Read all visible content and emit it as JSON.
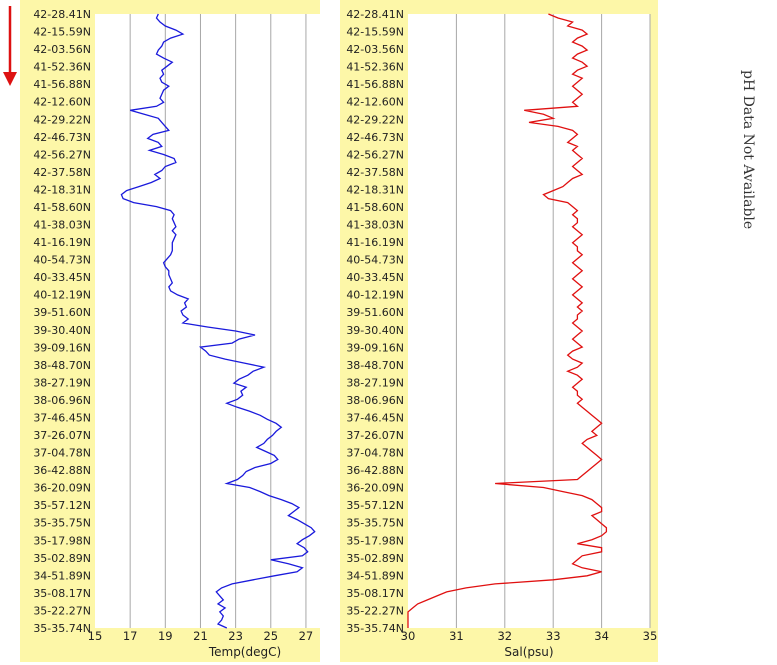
{
  "side_note": "pH Data Not Available",
  "latitudes": [
    "42-28.41N",
    "42-15.59N",
    "42-03.56N",
    "41-52.36N",
    "41-56.88N",
    "42-12.60N",
    "42-29.22N",
    "42-46.73N",
    "42-56.27N",
    "42-37.58N",
    "42-18.31N",
    "41-58.60N",
    "41-38.03N",
    "41-16.19N",
    "40-54.73N",
    "40-33.45N",
    "40-12.19N",
    "39-51.60N",
    "39-30.40N",
    "39-09.16N",
    "38-48.70N",
    "38-27.19N",
    "38-06.96N",
    "37-46.45N",
    "37-26.07N",
    "37-04.78N",
    "36-42.88N",
    "36-20.09N",
    "35-57.12N",
    "35-35.75N",
    "35-17.98N",
    "35-02.89N",
    "34-51.89N",
    "35-08.17N",
    "35-22.27N",
    "35-35.74N"
  ],
  "colors": {
    "panel_bg": "#fdf7a8",
    "plot_bg": "#ffffff",
    "temp_line": "#1a1adc",
    "sal_line": "#e01010",
    "arrow": "#dd1111"
  },
  "chart_data": [
    {
      "type": "line",
      "xlabel": "Temp(degC)",
      "xlim": [
        15,
        27.8
      ],
      "xticks": [
        15,
        17,
        19,
        21,
        23,
        25,
        27
      ],
      "orientation": "depth-profile",
      "series": [
        {
          "values": [
            18.6,
            18.5,
            18.7,
            19.0,
            19.6,
            20.0,
            19.3,
            18.9,
            18.8,
            18.6,
            18.5,
            18.9,
            19.4,
            19.1,
            18.8,
            18.9,
            18.7,
            18.8,
            19.2,
            18.9,
            18.8,
            18.7,
            18.9,
            18.5,
            17.0,
            17.8,
            18.6,
            18.8,
            19.0,
            19.2,
            18.3,
            18.0,
            18.6,
            18.8,
            18.1,
            18.9,
            19.5,
            19.6,
            19.0,
            18.8,
            18.4,
            18.7,
            18.2,
            17.5,
            16.8,
            16.5,
            16.6,
            17.2,
            18.5,
            19.3,
            19.5,
            19.4,
            19.5,
            19.6,
            19.4,
            19.6,
            19.5,
            19.4,
            19.4,
            19.4,
            19.3,
            19.1,
            18.9,
            19.0,
            19.2,
            19.2,
            19.3,
            19.4,
            19.2,
            19.3,
            19.7,
            20.3,
            20.1,
            20.2,
            19.9,
            20.0,
            20.3,
            20.0,
            21.4,
            23.0,
            24.1,
            23.2,
            22.8,
            21.0,
            21.3,
            21.5,
            22.4,
            23.5,
            24.6,
            24.0,
            23.7,
            23.2,
            22.9,
            23.6,
            23.3,
            23.4,
            23.1,
            22.5,
            23.1,
            23.8,
            24.4,
            24.8,
            25.3,
            25.6,
            25.3,
            25.1,
            24.8,
            24.6,
            24.2,
            24.7,
            25.2,
            25.4,
            25.0,
            24.1,
            23.6,
            23.4,
            23.1,
            22.5,
            23.8,
            24.4,
            24.9,
            25.6,
            26.2,
            26.6,
            26.3,
            26.0,
            26.5,
            26.9,
            27.3,
            27.5,
            27.2,
            26.8,
            26.5,
            26.9,
            27.1,
            26.8,
            25.0,
            26.0,
            26.8,
            26.5,
            25.2,
            24.0,
            22.8,
            22.2,
            21.9,
            22.1,
            22.3,
            22.0,
            22.4,
            22.1,
            22.3,
            22.2,
            22.0,
            22.5
          ]
        }
      ]
    },
    {
      "type": "line",
      "xlabel": "Sal(psu)",
      "xlim": [
        30,
        35
      ],
      "xticks": [
        30,
        31,
        32,
        33,
        34,
        35
      ],
      "orientation": "depth-profile",
      "series": [
        {
          "values": [
            32.9,
            33.1,
            33.4,
            33.3,
            33.6,
            33.7,
            33.5,
            33.4,
            33.6,
            33.7,
            33.5,
            33.4,
            33.6,
            33.7,
            33.5,
            33.4,
            33.6,
            33.5,
            33.4,
            33.5,
            33.6,
            33.5,
            33.4,
            33.5,
            32.4,
            32.8,
            33.0,
            32.5,
            33.1,
            33.4,
            33.5,
            33.4,
            33.3,
            33.5,
            33.4,
            33.5,
            33.6,
            33.5,
            33.4,
            33.5,
            33.6,
            33.4,
            33.3,
            33.2,
            33.0,
            32.8,
            32.9,
            33.3,
            33.4,
            33.5,
            33.4,
            33.5,
            33.5,
            33.4,
            33.5,
            33.6,
            33.5,
            33.4,
            33.5,
            33.5,
            33.6,
            33.5,
            33.4,
            33.5,
            33.6,
            33.5,
            33.4,
            33.5,
            33.6,
            33.5,
            33.4,
            33.5,
            33.6,
            33.5,
            33.6,
            33.5,
            33.5,
            33.4,
            33.5,
            33.6,
            33.5,
            33.4,
            33.5,
            33.6,
            33.4,
            33.3,
            33.4,
            33.6,
            33.5,
            33.3,
            33.5,
            33.6,
            33.5,
            33.4,
            33.5,
            33.5,
            33.6,
            33.5,
            33.6,
            33.7,
            33.8,
            33.9,
            34.0,
            33.9,
            33.8,
            33.9,
            33.7,
            33.6,
            33.7,
            33.8,
            33.9,
            34.0,
            33.9,
            33.8,
            33.7,
            33.6,
            33.5,
            31.8,
            32.8,
            33.2,
            33.6,
            33.8,
            33.9,
            34.0,
            34.0,
            33.8,
            33.9,
            34.0,
            34.1,
            34.1,
            34.0,
            33.8,
            33.5,
            34.0,
            34.0,
            33.6,
            33.5,
            33.4,
            33.6,
            34.0,
            33.7,
            33.0,
            31.8,
            31.2,
            30.8,
            30.6,
            30.4,
            30.2,
            30.1,
            30.0,
            30.0,
            30.0,
            30.0,
            30.0
          ]
        }
      ]
    }
  ]
}
